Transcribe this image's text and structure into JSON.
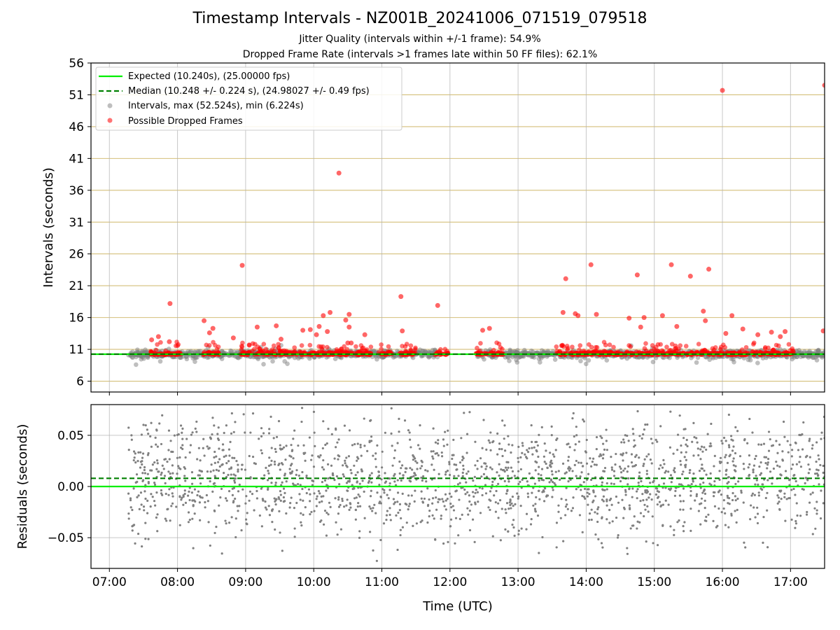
{
  "chart_data": [
    {
      "type": "scatter",
      "title": "Timestamp Intervals - NZ001B_20241006_071519_079518",
      "subtitle_lines": [
        "Jitter Quality (intervals within +/-1 frame): 54.9%",
        "Dropped Frame Rate (intervals >1 frames late within 50 FF files): 62.1%"
      ],
      "xlabel": "",
      "ylabel": "Intervals (seconds)",
      "ylim": [
        4.3,
        56
      ],
      "yticks": [
        "6",
        "11",
        "16",
        "21",
        "26",
        "31",
        "36",
        "41",
        "46",
        "51",
        "56"
      ],
      "ytick_values": [
        6,
        11,
        16,
        21,
        26,
        31,
        36,
        41,
        46,
        51,
        56
      ],
      "x_range_hours": [
        6.73,
        17.5
      ],
      "xtick_values": [
        7,
        8,
        9,
        10,
        11,
        12,
        13,
        14,
        15,
        16,
        17
      ],
      "grid": true,
      "legend_placement": "top-left",
      "legend": [
        {
          "label": "Expected (10.240s), (25.00000 fps)",
          "style": "solid-line",
          "color": "#00ee00"
        },
        {
          "label": "Median (10.248 +/- 0.224 s), (24.98027 +/- 0.49 fps)",
          "style": "dashed-line",
          "color": "#008000"
        },
        {
          "label": "Intervals, max (52.524s), min (6.224s)",
          "style": "marker",
          "color": "#808080"
        },
        {
          "label": "Possible Dropped Frames",
          "style": "marker",
          "color": "#ff0000"
        }
      ],
      "expected_interval": 10.24,
      "median_interval": 10.248,
      "outliers_x_hours": [
        7.62,
        7.72,
        7.89,
        7.88,
        8.39,
        8.47,
        8.52,
        8.95,
        8.82,
        9.17,
        9.45,
        9.52,
        9.84,
        9.95,
        10.04,
        10.08,
        10.14,
        10.2,
        10.24,
        10.37,
        10.47,
        10.52,
        10.52,
        10.55,
        10.5,
        10.75,
        11.28,
        11.3,
        11.82,
        12.48,
        12.58,
        13.7,
        13.66,
        13.84,
        13.88,
        14.07,
        14.15,
        14.63,
        14.75,
        14.8,
        14.85,
        15.12,
        15.25,
        15.33,
        15.53,
        15.72,
        15.75,
        15.8,
        16.0,
        16.05,
        16.14,
        16.3,
        16.52,
        16.72,
        16.85,
        16.92,
        17.48
      ],
      "outliers_y_seconds": [
        12.5,
        13.0,
        18.2,
        12.2,
        15.5,
        13.6,
        14.3,
        24.2,
        12.8,
        14.5,
        14.7,
        12.6,
        14.0,
        14.1,
        13.3,
        14.6,
        16.3,
        13.8,
        16.8,
        38.7,
        15.6,
        16.5,
        14.5,
        12.0,
        12.0,
        13.3,
        19.3,
        13.9,
        17.9,
        14.0,
        14.3,
        22.1,
        16.8,
        16.6,
        16.3,
        24.3,
        16.5,
        15.9,
        22.7,
        14.5,
        16.0,
        16.3,
        24.3,
        14.6,
        22.5,
        17.0,
        15.5,
        23.6,
        51.7,
        13.5,
        16.3,
        14.2,
        13.3,
        13.7,
        13.0,
        13.8,
        13.9
      ],
      "outliers_y_seconds_right_edge": 52.5
    },
    {
      "type": "scatter",
      "title": "",
      "xlabel": "Time (UTC)",
      "ylabel": "Residuals (seconds)",
      "ylim": [
        -0.08,
        0.08
      ],
      "yticks": [
        "0.05",
        "0.00",
        "−0.05"
      ],
      "ytick_values": [
        0.05,
        0.0,
        -0.05
      ],
      "x_range_hours": [
        6.73,
        17.5
      ],
      "xticks": [
        "07:00",
        "08:00",
        "09:00",
        "10:00",
        "11:00",
        "12:00",
        "13:00",
        "14:00",
        "15:00",
        "16:00",
        "17:00"
      ],
      "xtick_values": [
        7,
        8,
        9,
        10,
        11,
        12,
        13,
        14,
        15,
        16,
        17
      ],
      "grid": true,
      "expected_residual": 0.0,
      "median_residual": 0.008,
      "point_color": "#808080"
    }
  ],
  "colors": {
    "expected": "#00ee00",
    "median": "#008000",
    "intervals": "#808080",
    "dropped": "#ff0000",
    "hgrid_top": "#d4bf7a",
    "grid": "#b0b0b0"
  }
}
